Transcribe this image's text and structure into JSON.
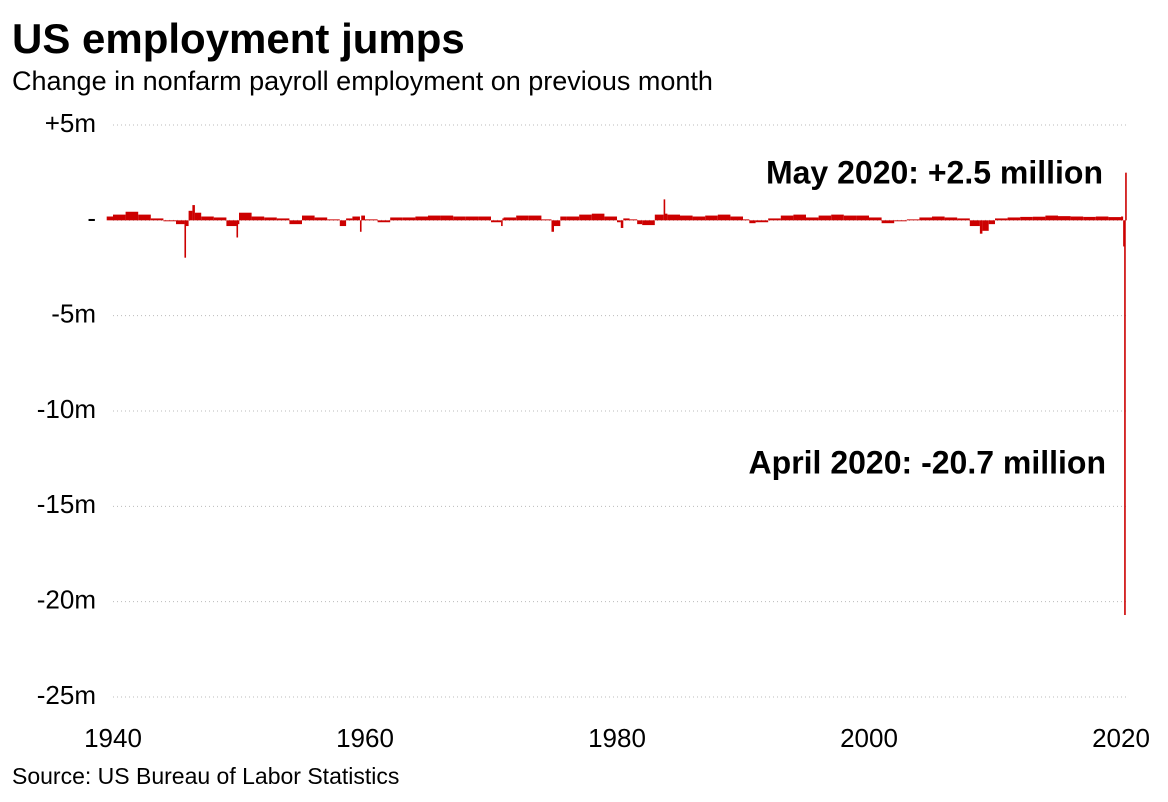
{
  "chart_data": {
    "type": "bar",
    "title": "US employment jumps",
    "subtitle": "Change in nonfarm payroll employment on previous month",
    "source": "Source: US Bureau of Labor Statistics",
    "color": "#cc0000",
    "grid": true,
    "annotations": [
      "May 2020: +2.5 million",
      "April 2020: -20.7 million"
    ],
    "x": [
      1939.5,
      1940,
      1941,
      1942,
      1943,
      1944,
      1945,
      1945.67,
      1945.75,
      1946,
      1946.3,
      1946.5,
      1947,
      1948,
      1949,
      1949.8,
      1949.9,
      1950,
      1951,
      1952,
      1953,
      1954,
      1955,
      1956,
      1957,
      1958,
      1958.5,
      1959,
      1959.6,
      1959.7,
      1960,
      1961,
      1962,
      1963,
      1964,
      1965,
      1966,
      1967,
      1968,
      1969,
      1970,
      1970.8,
      1970.9,
      1971,
      1972,
      1973,
      1974,
      1974.8,
      1975,
      1975.5,
      1976,
      1977,
      1978,
      1979,
      1980,
      1980.3,
      1980.5,
      1981,
      1981.6,
      1982,
      1983,
      1983.7,
      1983.8,
      1984,
      1985,
      1986,
      1987,
      1988,
      1989,
      1990,
      1990.5,
      1991,
      1992,
      1993,
      1994,
      1995,
      1996,
      1997,
      1998,
      1999,
      2000,
      2001,
      2002,
      2003,
      2004,
      2005,
      2006,
      2007,
      2008,
      2008.8,
      2009,
      2009.5,
      2010,
      2011,
      2012,
      2013,
      2014,
      2015,
      2016,
      2017,
      2018,
      2019,
      2020,
      2020.17,
      2020.25,
      2020.33
    ],
    "values": [
      0.2,
      0.3,
      0.45,
      0.3,
      0.1,
      -0.05,
      -0.2,
      -1.96,
      -0.3,
      0.5,
      0.8,
      0.4,
      0.2,
      0.15,
      -0.3,
      -0.9,
      -0.2,
      0.4,
      0.2,
      0.15,
      0.1,
      -0.2,
      0.25,
      0.15,
      0.05,
      -0.3,
      0.1,
      0.2,
      -0.6,
      0.25,
      0.05,
      -0.1,
      0.15,
      0.15,
      0.2,
      0.25,
      0.25,
      0.2,
      0.2,
      0.2,
      -0.1,
      -0.3,
      0.1,
      0.15,
      0.25,
      0.25,
      0.05,
      -0.6,
      -0.3,
      0.2,
      0.2,
      0.3,
      0.35,
      0.2,
      -0.1,
      -0.4,
      0.1,
      0.05,
      -0.2,
      -0.25,
      0.3,
      1.1,
      0.35,
      0.3,
      0.25,
      0.2,
      0.25,
      0.3,
      0.2,
      0.05,
      -0.15,
      -0.1,
      0.1,
      0.25,
      0.3,
      0.15,
      0.25,
      0.3,
      0.25,
      0.25,
      0.15,
      -0.15,
      -0.05,
      0.05,
      0.15,
      0.2,
      0.15,
      0.1,
      -0.3,
      -0.7,
      -0.55,
      -0.2,
      0.1,
      0.15,
      0.18,
      0.19,
      0.25,
      0.22,
      0.2,
      0.18,
      0.2,
      0.17,
      0.2,
      -1.37,
      -20.7,
      2.5
    ],
    "xlim": [
      1940,
      2020.5
    ],
    "xticks": [
      1940,
      1960,
      1980,
      2000,
      2020
    ],
    "ylim": [
      -25,
      5
    ],
    "yticks": [
      {
        "value": 5,
        "label": "+5m"
      },
      {
        "value": 0,
        "label": "-"
      },
      {
        "value": -5,
        "label": "-5m"
      },
      {
        "value": -10,
        "label": "-10m"
      },
      {
        "value": -15,
        "label": "-15m"
      },
      {
        "value": -20,
        "label": "-20m"
      },
      {
        "value": -25,
        "label": "-25m"
      }
    ]
  }
}
